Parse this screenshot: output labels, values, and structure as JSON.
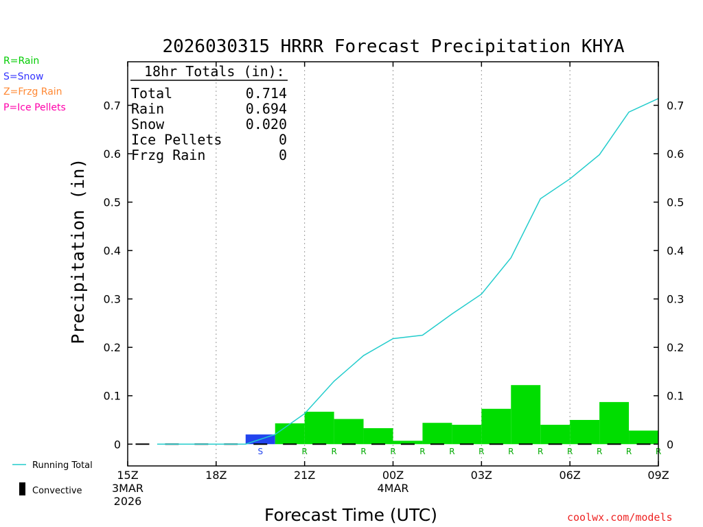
{
  "title": "2026030315 HRRR Forecast Precipitation KHYA",
  "precip_type_legend": [
    {
      "text": "R=Rain",
      "color": "#00cc00"
    },
    {
      "text": "S=Snow",
      "color": "#3333ff"
    },
    {
      "text": "Z=Frzg Rain",
      "color": "#ff8833"
    },
    {
      "text": "P=Ice Pellets",
      "color": "#ff00aa"
    }
  ],
  "totals_box": {
    "header": "18hr Totals (in):",
    "rows": [
      {
        "label": "Total",
        "value": "0.714"
      },
      {
        "label": "Rain",
        "value": "0.694"
      },
      {
        "label": "Snow",
        "value": "0.020"
      },
      {
        "label": "Ice Pellets",
        "value": "0"
      },
      {
        "label": "Frzg Rain",
        "value": "0"
      }
    ]
  },
  "line_legend": {
    "running_total": "Running Total",
    "convective": "Convective"
  },
  "credit": "coolwx.com/models",
  "colors": {
    "rain": "#00dd00",
    "snow": "#2244ee",
    "running_total": "#22cccc",
    "rain_label": "#00aa00",
    "snow_label": "#2244ee"
  },
  "chart_data": {
    "type": "bar",
    "title": "2026030315 HRRR Forecast Precipitation KHYA",
    "xlabel": "Forecast Time (UTC)",
    "ylabel": "Precipitation (in)",
    "ylim": [
      -0.045,
      0.79
    ],
    "xlim": [
      0,
      18
    ],
    "y_ticks": [
      "0",
      "0.1",
      "0.2",
      "0.3",
      "0.4",
      "0.5",
      "0.6",
      "0.7"
    ],
    "y_tick_values": [
      0,
      0.1,
      0.2,
      0.3,
      0.4,
      0.5,
      0.6,
      0.7
    ],
    "x_ticks": [
      {
        "hour": 0,
        "lines": [
          "15Z",
          "3MAR",
          "2026"
        ]
      },
      {
        "hour": 3,
        "lines": [
          "18Z"
        ]
      },
      {
        "hour": 6,
        "lines": [
          "21Z"
        ]
      },
      {
        "hour": 9,
        "lines": [
          "00Z",
          "4MAR"
        ]
      },
      {
        "hour": 12,
        "lines": [
          "03Z"
        ]
      },
      {
        "hour": 15,
        "lines": [
          "06Z"
        ]
      },
      {
        "hour": 18,
        "lines": [
          "09Z"
        ]
      }
    ],
    "grid_hours": [
      3,
      6,
      9,
      12,
      15
    ],
    "bars": [
      {
        "hour": 5,
        "value": 0.02,
        "type": "S"
      },
      {
        "hour": 6,
        "value": 0.043,
        "type": "R"
      },
      {
        "hour": 7,
        "value": 0.067,
        "type": "R"
      },
      {
        "hour": 8,
        "value": 0.052,
        "type": "R"
      },
      {
        "hour": 9,
        "value": 0.033,
        "type": "R"
      },
      {
        "hour": 10,
        "value": 0.007,
        "type": "R"
      },
      {
        "hour": 11,
        "value": 0.044,
        "type": "R"
      },
      {
        "hour": 12,
        "value": 0.04,
        "type": "R"
      },
      {
        "hour": 13,
        "value": 0.073,
        "type": "R"
      },
      {
        "hour": 14,
        "value": 0.122,
        "type": "R"
      },
      {
        "hour": 15,
        "value": 0.04,
        "type": "R"
      },
      {
        "hour": 16,
        "value": 0.05,
        "type": "R"
      },
      {
        "hour": 17,
        "value": 0.087,
        "type": "R"
      },
      {
        "hour": 18,
        "value": 0.028,
        "type": "R"
      }
    ],
    "series": [
      {
        "name": "Running Total",
        "x": [
          1,
          2,
          3,
          4,
          5,
          6,
          7,
          8,
          9,
          10,
          11,
          12,
          13,
          14,
          15,
          16,
          17,
          18
        ],
        "values": [
          0,
          0,
          0,
          0,
          0.02,
          0.063,
          0.13,
          0.183,
          0.218,
          0.225,
          0.269,
          0.31,
          0.385,
          0.507,
          0.548,
          0.598,
          0.686,
          0.714
        ]
      }
    ],
    "convective_hours": [
      1,
      2,
      3,
      4,
      5,
      6,
      7,
      8,
      9,
      10,
      11,
      12,
      13,
      14,
      15,
      16,
      17,
      18
    ]
  }
}
